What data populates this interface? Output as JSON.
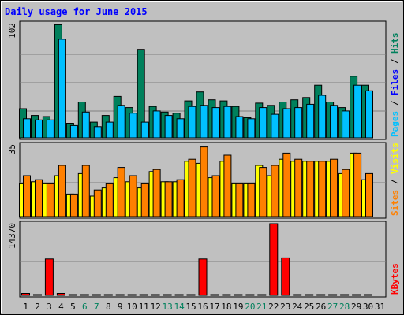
{
  "chart_data": [
    {
      "type": "bar",
      "title": "Daily usage for June 2015",
      "y_max_label": "102",
      "ylim": [
        0,
        102
      ],
      "right_label": {
        "parts": [
          "Pages",
          "Files",
          "Hits"
        ],
        "separator": " / "
      },
      "categories": [
        "1",
        "2",
        "3",
        "4",
        "5",
        "6",
        "7",
        "8",
        "9",
        "10",
        "11",
        "12",
        "13",
        "14",
        "15",
        "16",
        "17",
        "18",
        "19",
        "20",
        "21",
        "22",
        "23",
        "24",
        "25",
        "26",
        "27",
        "28",
        "29",
        "30",
        "31"
      ],
      "series": [
        {
          "name": "Hits",
          "color": "#00805c",
          "values": [
            26,
            20,
            19,
            101,
            13,
            32,
            14,
            20,
            37,
            27,
            79,
            28,
            23,
            22,
            33,
            41,
            34,
            33,
            28,
            18,
            31,
            29,
            32,
            34,
            36,
            47,
            32,
            27,
            55,
            47,
            0
          ]
        },
        {
          "name": "Files",
          "color": "#00c0ff",
          "values": [
            17,
            16,
            16,
            88,
            11,
            23,
            10,
            14,
            29,
            22,
            14,
            24,
            20,
            17,
            28,
            29,
            27,
            28,
            19,
            17,
            27,
            21,
            26,
            27,
            30,
            38,
            29,
            24,
            47,
            42,
            0
          ]
        }
      ]
    },
    {
      "type": "bar",
      "y_max_label": "35",
      "ylim": [
        0,
        35
      ],
      "right_label": {
        "parts": [
          "Sites",
          "Visits"
        ],
        "separator": " / "
      },
      "categories": [
        "1",
        "2",
        "3",
        "4",
        "5",
        "6",
        "7",
        "8",
        "9",
        "10",
        "11",
        "12",
        "13",
        "14",
        "15",
        "16",
        "17",
        "18",
        "19",
        "20",
        "21",
        "22",
        "23",
        "24",
        "25",
        "26",
        "27",
        "28",
        "29",
        "30",
        "31"
      ],
      "series": [
        {
          "name": "Visits",
          "color": "#ffff00",
          "values": [
            16,
            17,
            16,
            20,
            11,
            21,
            10,
            14,
            19,
            17,
            14,
            22,
            17,
            17,
            27,
            26,
            19,
            27,
            16,
            16,
            25,
            20,
            28,
            27,
            27,
            27,
            27,
            21,
            31,
            18,
            0
          ]
        },
        {
          "name": "Sites",
          "color": "#ff8000",
          "values": [
            20,
            18,
            16,
            25,
            11,
            25,
            13,
            16,
            24,
            20,
            16,
            23,
            17,
            18,
            28,
            34,
            20,
            30,
            16,
            16,
            24,
            25,
            31,
            28,
            27,
            27,
            28,
            23,
            31,
            21,
            0
          ]
        }
      ]
    },
    {
      "type": "bar",
      "y_max_label": "14370",
      "ylim": [
        0,
        14370
      ],
      "right_label": {
        "parts": [
          "KBytes"
        ],
        "separator": ""
      },
      "categories": [
        "1",
        "2",
        "3",
        "4",
        "5",
        "6",
        "7",
        "8",
        "9",
        "10",
        "11",
        "12",
        "13",
        "14",
        "15",
        "16",
        "17",
        "18",
        "19",
        "20",
        "21",
        "22",
        "23",
        "24",
        "25",
        "26",
        "27",
        "28",
        "29",
        "30",
        "31"
      ],
      "series": [
        {
          "name": "KBytes",
          "color": "#ff0000",
          "values": [
            390,
            90,
            7300,
            390,
            90,
            90,
            90,
            90,
            90,
            90,
            90,
            90,
            90,
            90,
            90,
            7300,
            90,
            90,
            90,
            90,
            90,
            14370,
            7520,
            90,
            90,
            90,
            90,
            90,
            90,
            90,
            0
          ]
        }
      ]
    }
  ],
  "x_axis": {
    "labels": [
      "1",
      "2",
      "3",
      "4",
      "5",
      "6",
      "7",
      "8",
      "9",
      "10",
      "11",
      "12",
      "13",
      "14",
      "15",
      "16",
      "17",
      "18",
      "19",
      "20",
      "21",
      "22",
      "23",
      "24",
      "25",
      "26",
      "27",
      "28",
      "29",
      "30",
      "31"
    ],
    "weekend": [
      false,
      false,
      false,
      false,
      false,
      true,
      true,
      false,
      false,
      false,
      false,
      false,
      true,
      true,
      false,
      false,
      false,
      false,
      false,
      true,
      true,
      false,
      false,
      false,
      false,
      false,
      true,
      true,
      false,
      false,
      false
    ],
    "weekday_color": "#000000",
    "weekend_color": "#00805c"
  },
  "colors": {
    "title": "#0000ff",
    "background": "#c0c0c0",
    "panel": "#c0c0c0",
    "grid": "#808080"
  }
}
